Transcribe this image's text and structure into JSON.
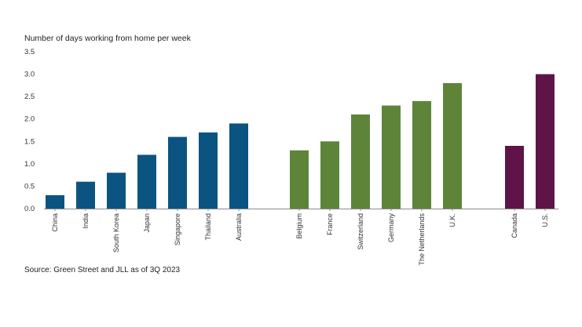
{
  "chart_data": {
    "type": "bar",
    "title": "Number of days working from home per week",
    "source": "Source: Green Street and JLL as of 3Q 2023",
    "ylim": [
      0,
      3.5
    ],
    "y_ticks": [
      "0.0",
      "0.5",
      "1.0",
      "1.5",
      "2.0",
      "2.5",
      "3.0",
      "3.5"
    ],
    "grid": false,
    "legend": "none",
    "groups": [
      {
        "color": "#0b5481",
        "categories": [
          "China",
          "India",
          "South Korea",
          "Japan",
          "Singapore",
          "Thailand",
          "Australia"
        ],
        "values": [
          0.3,
          0.6,
          0.8,
          1.2,
          1.6,
          1.7,
          1.9
        ]
      },
      {
        "color": "#5e843a",
        "categories": [
          "Belgium",
          "France",
          "Switzerland",
          "Germany",
          "The Netherlands",
          "U.K."
        ],
        "values": [
          1.3,
          1.5,
          2.1,
          2.3,
          2.4,
          2.8
        ]
      },
      {
        "color": "#5e1448",
        "categories": [
          "Canada",
          "U.S."
        ],
        "values": [
          1.4,
          3.0
        ]
      }
    ]
  }
}
